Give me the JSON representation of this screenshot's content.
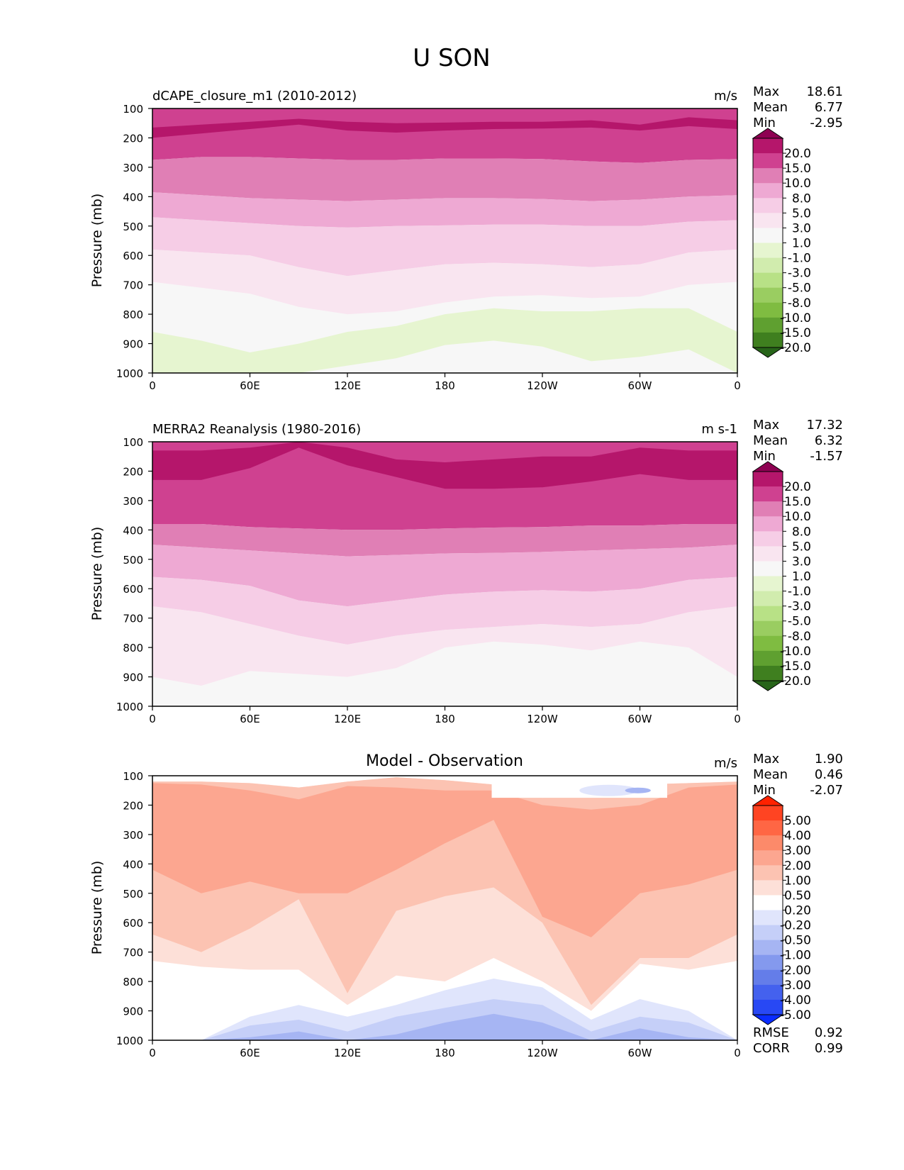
{
  "figure": {
    "title": "U SON"
  },
  "chart_data": [
    {
      "type": "heatmap",
      "title": "dCAPE_closure_m1 (2010-2012)",
      "title_position": "left",
      "units": "m/s",
      "ylabel": "Pressure (mb)",
      "x_ticks": [
        "0",
        "60E",
        "120E",
        "180",
        "120W",
        "60W",
        "0"
      ],
      "y_ticks": [
        "100",
        "200",
        "300",
        "400",
        "500",
        "600",
        "700",
        "800",
        "900",
        "1000"
      ],
      "ylim": [
        100,
        1000
      ],
      "xlim": [
        0,
        360
      ],
      "stats": [
        {
          "label": "Max",
          "value": "18.61"
        },
        {
          "label": "Mean",
          "value": "6.77"
        },
        {
          "label": "Min",
          "value": "-2.95"
        }
      ],
      "colorbar": {
        "labels": [
          "20.0",
          "15.0",
          "10.0",
          "8.0",
          "5.0",
          "3.0",
          "1.0",
          "-1.0",
          "-3.0",
          "-5.0",
          "-8.0",
          "-10.0",
          "-15.0",
          "-20.0"
        ],
        "colors": [
          "#8e0152",
          "#b5166b",
          "#cf4190",
          "#e07fb5",
          "#eea9d3",
          "#f6cde6",
          "#f9e5f0",
          "#f7f7f7",
          "#e6f5d0",
          "#d1ecae",
          "#b8e186",
          "#9acd61",
          "#7fbc41",
          "#5fa030",
          "#3f7f1f",
          "#276419"
        ]
      },
      "level_bounds_hpa": {
        "b20": [
          200,
          185,
          170,
          155,
          175,
          182,
          175,
          170,
          168,
          165,
          175,
          160,
          170
        ],
        "b15": [
          165,
          155,
          145,
          135,
          145,
          150,
          148,
          145,
          145,
          140,
          155,
          130,
          140
        ],
        "b10": [
          275,
          265,
          265,
          270,
          275,
          275,
          270,
          270,
          272,
          280,
          285,
          275,
          272
        ],
        "b8": [
          385,
          395,
          405,
          410,
          415,
          410,
          405,
          405,
          408,
          415,
          410,
          400,
          395
        ],
        "b5": [
          470,
          480,
          490,
          500,
          505,
          500,
          498,
          495,
          495,
          500,
          500,
          485,
          480
        ],
        "b3": [
          580,
          590,
          600,
          640,
          670,
          650,
          630,
          625,
          630,
          640,
          630,
          590,
          580
        ],
        "b1": [
          690,
          710,
          730,
          775,
          800,
          790,
          760,
          740,
          735,
          745,
          740,
          700,
          690
        ],
        "bm1": [
          860,
          890,
          930,
          900,
          860,
          840,
          800,
          780,
          790,
          790,
          780,
          780,
          860
        ],
        "bm3": [
          1000,
          1000,
          1000,
          1000,
          975,
          950,
          905,
          890,
          910,
          960,
          945,
          920,
          1000
        ]
      }
    },
    {
      "type": "heatmap",
      "title": "MERRA2 Reanalysis (1980-2016)",
      "title_position": "left",
      "units": "m s-1",
      "ylabel": "Pressure (mb)",
      "x_ticks": [
        "0",
        "60E",
        "120E",
        "180",
        "120W",
        "60W",
        "0"
      ],
      "y_ticks": [
        "100",
        "200",
        "300",
        "400",
        "500",
        "600",
        "700",
        "800",
        "900",
        "1000"
      ],
      "ylim": [
        100,
        1000
      ],
      "xlim": [
        0,
        360
      ],
      "stats": [
        {
          "label": "Max",
          "value": "17.32"
        },
        {
          "label": "Mean",
          "value": "6.32"
        },
        {
          "label": "Min",
          "value": "-1.57"
        }
      ],
      "colorbar": {
        "labels": [
          "20.0",
          "15.0",
          "10.0",
          "8.0",
          "5.0",
          "3.0",
          "1.0",
          "-1.0",
          "-3.0",
          "-5.0",
          "-8.0",
          "-10.0",
          "-15.0",
          "-20.0"
        ],
        "colors": [
          "#8e0152",
          "#b5166b",
          "#cf4190",
          "#e07fb5",
          "#eea9d3",
          "#f6cde6",
          "#f9e5f0",
          "#f7f7f7",
          "#e6f5d0",
          "#d1ecae",
          "#b8e186",
          "#9acd61",
          "#7fbc41",
          "#5fa030",
          "#3f7f1f",
          "#276419"
        ]
      },
      "level_bounds_hpa": {
        "b20": [
          230,
          230,
          190,
          120,
          180,
          220,
          260,
          260,
          255,
          235,
          210,
          230,
          230
        ],
        "b15": [
          130,
          130,
          120,
          100,
          120,
          160,
          170,
          160,
          150,
          150,
          120,
          130,
          130
        ],
        "b10": [
          380,
          380,
          390,
          395,
          400,
          400,
          395,
          392,
          390,
          385,
          385,
          380,
          380
        ],
        "b8": [
          450,
          460,
          470,
          480,
          490,
          485,
          480,
          478,
          475,
          470,
          465,
          460,
          450
        ],
        "b5": [
          560,
          570,
          590,
          640,
          660,
          640,
          620,
          610,
          605,
          610,
          600,
          570,
          560
        ],
        "b3": [
          660,
          680,
          720,
          760,
          790,
          760,
          740,
          730,
          720,
          730,
          720,
          680,
          660
        ],
        "b1": [
          900,
          930,
          880,
          890,
          900,
          870,
          800,
          780,
          790,
          810,
          780,
          800,
          900
        ],
        "bm1": [
          1000,
          1000,
          1000,
          1000,
          1000,
          995,
          980,
          975,
          985,
          1000,
          1000,
          1000,
          1000
        ]
      }
    },
    {
      "type": "heatmap",
      "title": "Model - Observation",
      "title_position": "center",
      "units": "m/s",
      "ylabel": "Pressure (mb)",
      "x_ticks": [
        "0",
        "60E",
        "120E",
        "180",
        "120W",
        "60W",
        "0"
      ],
      "y_ticks": [
        "100",
        "200",
        "300",
        "400",
        "500",
        "600",
        "700",
        "800",
        "900",
        "1000"
      ],
      "ylim": [
        100,
        1000
      ],
      "xlim": [
        0,
        360
      ],
      "stats": [
        {
          "label": "Max",
          "value": "1.90"
        },
        {
          "label": "Mean",
          "value": "0.46"
        },
        {
          "label": "Min",
          "value": "-2.07"
        }
      ],
      "extra_stats": [
        {
          "label": "RMSE",
          "value": "0.92"
        },
        {
          "label": "CORR",
          "value": "0.99"
        }
      ],
      "colorbar": {
        "labels": [
          "5.00",
          "4.00",
          "3.00",
          "2.00",
          "1.00",
          "0.50",
          "0.20",
          "-0.20",
          "-0.50",
          "-1.00",
          "-2.00",
          "-3.00",
          "-4.00",
          "-5.00"
        ],
        "colors": [
          "#ff2200",
          "#ff4422",
          "#ff6644",
          "#fc8a6a",
          "#fca690",
          "#fcc3b2",
          "#fde0d8",
          "#ffffff",
          "#e0e5fc",
          "#c5cff8",
          "#a6b5f3",
          "#8499ee",
          "#647de9",
          "#4461ee",
          "#2848f4",
          "#0a2cff"
        ]
      },
      "level_bounds_hpa": {
        "top_p05": [
          120,
          120,
          125,
          140,
          120,
          105,
          115,
          130,
          175,
          165,
          130,
          125,
          120
        ],
        "top_p1": [
          125,
          130,
          150,
          180,
          135,
          140,
          150,
          150,
          200,
          215,
          200,
          140,
          130
        ],
        "bottom_p1": [
          420,
          500,
          460,
          500,
          500,
          420,
          330,
          250,
          580,
          650,
          500,
          470,
          420
        ],
        "bottom_p05": [
          640,
          700,
          620,
          520,
          840,
          560,
          510,
          480,
          600,
          880,
          720,
          720,
          640
        ],
        "bottom_p02": [
          730,
          750,
          760,
          760,
          880,
          780,
          800,
          720,
          800,
          900,
          740,
          760,
          730
        ],
        "top_m02": [
          1000,
          1000,
          920,
          880,
          920,
          880,
          830,
          790,
          820,
          930,
          860,
          900,
          1000
        ],
        "top_m05": [
          1000,
          1000,
          950,
          930,
          970,
          920,
          890,
          860,
          880,
          970,
          920,
          940,
          1000
        ],
        "top_m1": [
          1000,
          1000,
          990,
          970,
          1000,
          980,
          940,
          910,
          940,
          1000,
          960,
          990,
          1000
        ]
      }
    }
  ]
}
